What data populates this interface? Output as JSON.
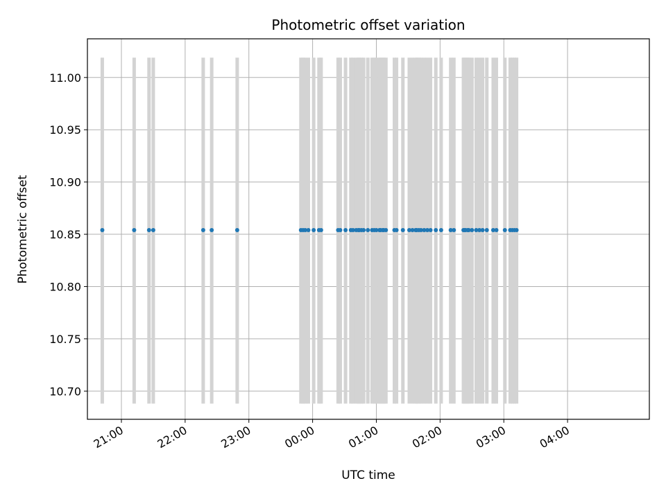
{
  "chart_data": {
    "type": "scatter",
    "title": "Photometric offset variation",
    "xlabel": "UTC time",
    "ylabel": "Photometric offset",
    "x_axis_type": "time",
    "xlim": [
      "20:28",
      "05:17"
    ],
    "ylim": [
      10.673,
      11.037
    ],
    "grid": true,
    "x_ticks": [
      "21:00",
      "22:00",
      "23:00",
      "00:00",
      "01:00",
      "02:00",
      "03:00",
      "04:00"
    ],
    "y_ticks": [
      "10.70",
      "10.75",
      "10.80",
      "10.85",
      "10.90",
      "10.95",
      "11.00"
    ],
    "point_color": "#1f77b4",
    "flag_color": "#d3d3d3",
    "flag_range": [
      10.688,
      11.019
    ],
    "series": [
      {
        "x": [
          "20:42",
          "21:12",
          "21:26",
          "21:30",
          "22:17",
          "22:25",
          "22:49",
          "23:49",
          "23:51",
          "23:53",
          "23:56",
          "24:01",
          "24:06",
          "24:08",
          "24:24",
          "24:26",
          "24:31",
          "24:36",
          "24:38",
          "24:41",
          "24:43",
          "24:44",
          "24:46",
          "24:48",
          "24:52",
          "24:56",
          "24:58",
          "25:00",
          "25:03",
          "25:04",
          "25:06",
          "25:07",
          "25:09",
          "25:17",
          "25:19",
          "25:25",
          "25:31",
          "25:34",
          "25:37",
          "25:38",
          "25:40",
          "25:42",
          "25:45",
          "25:48",
          "25:51",
          "25:56",
          "26:01",
          "26:10",
          "26:13",
          "26:22",
          "26:23",
          "26:24",
          "26:26",
          "26:27",
          "26:30",
          "26:34",
          "26:37",
          "26:40",
          "26:44",
          "26:50",
          "26:53",
          "27:01",
          "27:06",
          "27:08",
          "27:10",
          "27:12"
        ],
        "y": [
          10.854,
          10.854,
          10.854,
          10.854,
          10.854,
          10.854,
          10.854,
          10.854,
          10.854,
          10.854,
          10.854,
          10.854,
          10.854,
          10.854,
          10.854,
          10.854,
          10.854,
          10.854,
          10.854,
          10.854,
          10.854,
          10.854,
          10.854,
          10.854,
          10.854,
          10.854,
          10.854,
          10.854,
          10.854,
          10.854,
          10.854,
          10.854,
          10.854,
          10.854,
          10.854,
          10.854,
          10.854,
          10.854,
          10.854,
          10.854,
          10.854,
          10.854,
          10.854,
          10.854,
          10.854,
          10.854,
          10.854,
          10.854,
          10.854,
          10.854,
          10.854,
          10.854,
          10.854,
          10.854,
          10.854,
          10.854,
          10.854,
          10.854,
          10.854,
          10.854,
          10.854,
          10.854,
          10.854,
          10.854,
          10.854,
          10.854
        ]
      }
    ]
  }
}
